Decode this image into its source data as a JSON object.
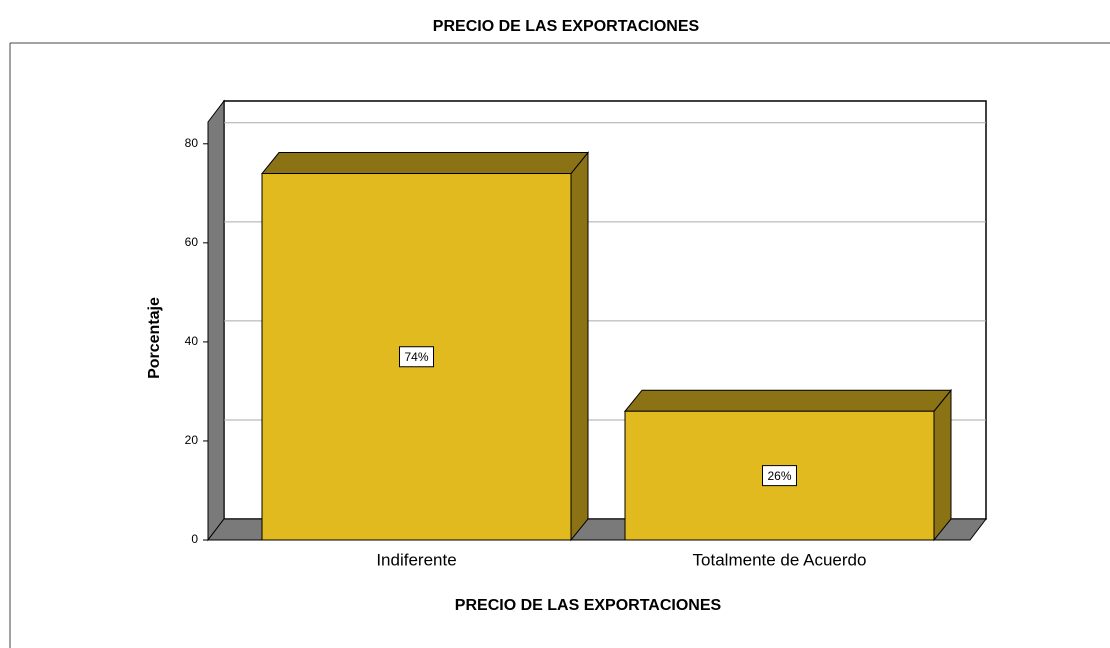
{
  "chart_data": {
    "type": "bar3d",
    "title": "PRECIO DE LAS EXPORTACIONES",
    "x_label": "PRECIO DE LAS EXPORTACIONES",
    "y_label": "Porcentaje",
    "categories": [
      "Indiferente",
      "Totalmente de Acuerdo"
    ],
    "values": [
      74,
      26
    ],
    "value_labels": [
      "74%",
      "26%"
    ],
    "color": "#e1ba1f",
    "ylim": [
      0,
      84.4
    ],
    "yticks": [
      0,
      20,
      40,
      60,
      80
    ],
    "grid": true
  }
}
